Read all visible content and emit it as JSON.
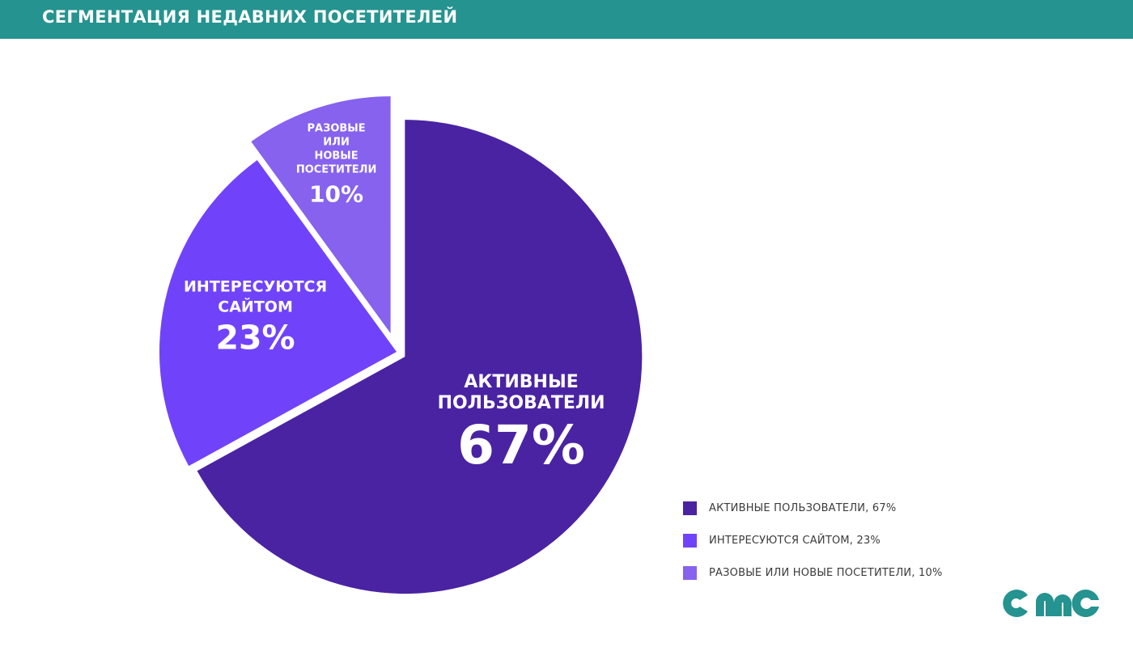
{
  "header": {
    "title": "СЕГМЕНТАЦИЯ НЕДАВНИХ ПОСЕТИТЕЛЕЙ"
  },
  "chart_data": {
    "type": "pie",
    "slices": [
      {
        "name": "АКТИВНЫЕ ПОЛЬЗОВАТЕЛИ",
        "value": 67,
        "value_label": "67%",
        "color": "#4a23a3",
        "label_lines": [
          "АКТИВНЫЕ",
          "ПОЛЬЗОВАТЕЛИ"
        ]
      },
      {
        "name": "ИНТЕРЕСУЮТСЯ САЙТОМ",
        "value": 23,
        "value_label": "23%",
        "color": "#7043fb",
        "label_lines": [
          "ИНТЕРЕСУЮТСЯ",
          "САЙТОМ"
        ]
      },
      {
        "name": "РАЗОВЫЕ ИЛИ НОВЫЕ ПОСЕТИТЕЛИ",
        "value": 10,
        "value_label": "10%",
        "color": "#8662ef",
        "label_lines": [
          "РАЗОВЫЕ",
          "ИЛИ",
          "НОВЫЕ",
          "ПОСЕТИТЕЛИ"
        ]
      }
    ],
    "legend": {
      "position": "bottom-right",
      "items": [
        "АКТИВНЫЕ ПОЛЬЗОВАТЕЛИ, 67%",
        "ИНТЕРЕСУЮТСЯ САЙТОМ, 23%",
        "РАЗОВЫЕ ИЛИ НОВЫЕ ПОСЕТИТЕЛИ, 10%"
      ]
    }
  },
  "colors": {
    "header": "#259390",
    "logo": "#259390"
  },
  "logo": {
    "icon": "cmg-logo"
  }
}
